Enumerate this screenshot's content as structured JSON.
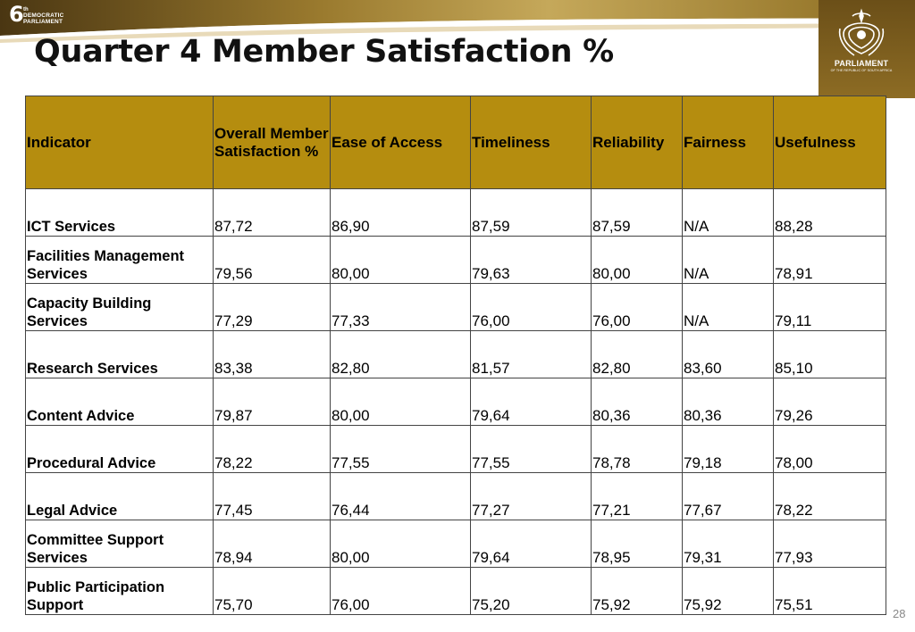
{
  "logo": {
    "number": "6",
    "superscript": "th",
    "line1": "DEMOCRATIC",
    "line2": "PARLIAMENT"
  },
  "title": "Quarter 4 Member Satisfaction %",
  "crest": {
    "label": "PARLIAMENT",
    "sublabel": "OF THE REPUBLIC OF SOUTH AFRICA"
  },
  "colors": {
    "header_fill": "#b58d0f",
    "banner_gold": "#8a6a1e",
    "banner_dark": "#4a3612"
  },
  "table": {
    "headers": [
      "Indicator",
      "Overall Member Satisfaction %",
      "Ease of Access",
      "Timeliness",
      "Reliability",
      "Fairness",
      "Usefulness"
    ],
    "rows": [
      [
        "ICT Services",
        "87,72",
        "86,90",
        "87,59",
        "87,59",
        "N/A",
        "88,28"
      ],
      [
        "Facilities Management Services",
        "79,56",
        "80,00",
        "79,63",
        "80,00",
        "N/A",
        "78,91"
      ],
      [
        "Capacity Building Services",
        "77,29",
        "77,33",
        "76,00",
        "76,00",
        "N/A",
        "79,11"
      ],
      [
        "Research Services",
        "83,38",
        "82,80",
        "81,57",
        "82,80",
        "83,60",
        "85,10"
      ],
      [
        "Content Advice",
        "79,87",
        "80,00",
        "79,64",
        "80,36",
        "80,36",
        "79,26"
      ],
      [
        "Procedural Advice",
        "78,22",
        "77,55",
        "77,55",
        "78,78",
        "79,18",
        "78,00"
      ],
      [
        "Legal Advice",
        "77,45",
        "76,44",
        "77,27",
        "77,21",
        "77,67",
        "78,22"
      ],
      [
        "Committee Support Services",
        "78,94",
        "80,00",
        "79,64",
        "78,95",
        "79,31",
        "77,93"
      ],
      [
        "Public Participation Support",
        "75,70",
        "76,00",
        "75,20",
        "75,92",
        "75,92",
        "75,51"
      ]
    ]
  },
  "page_number": "28"
}
